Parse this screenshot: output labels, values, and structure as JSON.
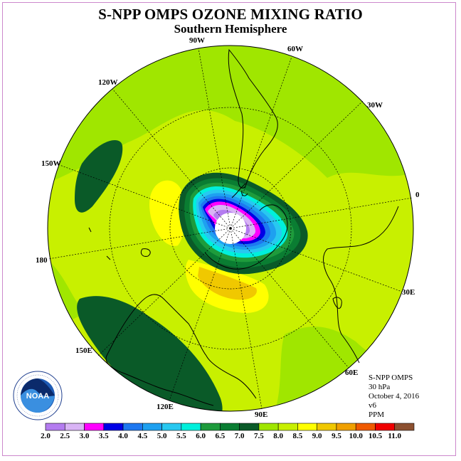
{
  "header": {
    "title": "S-NPP OMPS OZONE MIXING RATIO",
    "subtitle": "Southern Hemisphere"
  },
  "longitude_labels": [
    "90W",
    "60W",
    "30W",
    "0",
    "30E",
    "60E",
    "90E",
    "120E",
    "150E",
    "180",
    "150W",
    "120W"
  ],
  "info": {
    "instrument": "S-NPP OMPS",
    "level": "30 hPa",
    "date": "October 4, 2016",
    "version": "v6",
    "units": "PPM"
  },
  "logo": {
    "text": "NOAA",
    "ring_text": "NATIONAL OCEANIC AND ATMOSPHERIC ADMINISTRATION · U.S. DEPARTMENT OF COMMERCE"
  },
  "colorbar": {
    "ticks": [
      "2.0",
      "2.5",
      "3.0",
      "3.5",
      "4.0",
      "4.5",
      "5.0",
      "5.5",
      "6.0",
      "6.5",
      "7.0",
      "7.5",
      "8.0",
      "8.5",
      "9.0",
      "9.5",
      "10.0",
      "10.5",
      "11.0"
    ],
    "colors": [
      "#b47cf0",
      "#d9b4f5",
      "#ff00ff",
      "#0000e6",
      "#1e78f0",
      "#1ea0f0",
      "#28c8f0",
      "#00f0dc",
      "#1e9b3c",
      "#0a7d32",
      "#0a5a28",
      "#a0e600",
      "#c8f000",
      "#ffff00",
      "#f0c800",
      "#f0a000",
      "#f05a00",
      "#f00000",
      "#8c5030"
    ]
  }
}
